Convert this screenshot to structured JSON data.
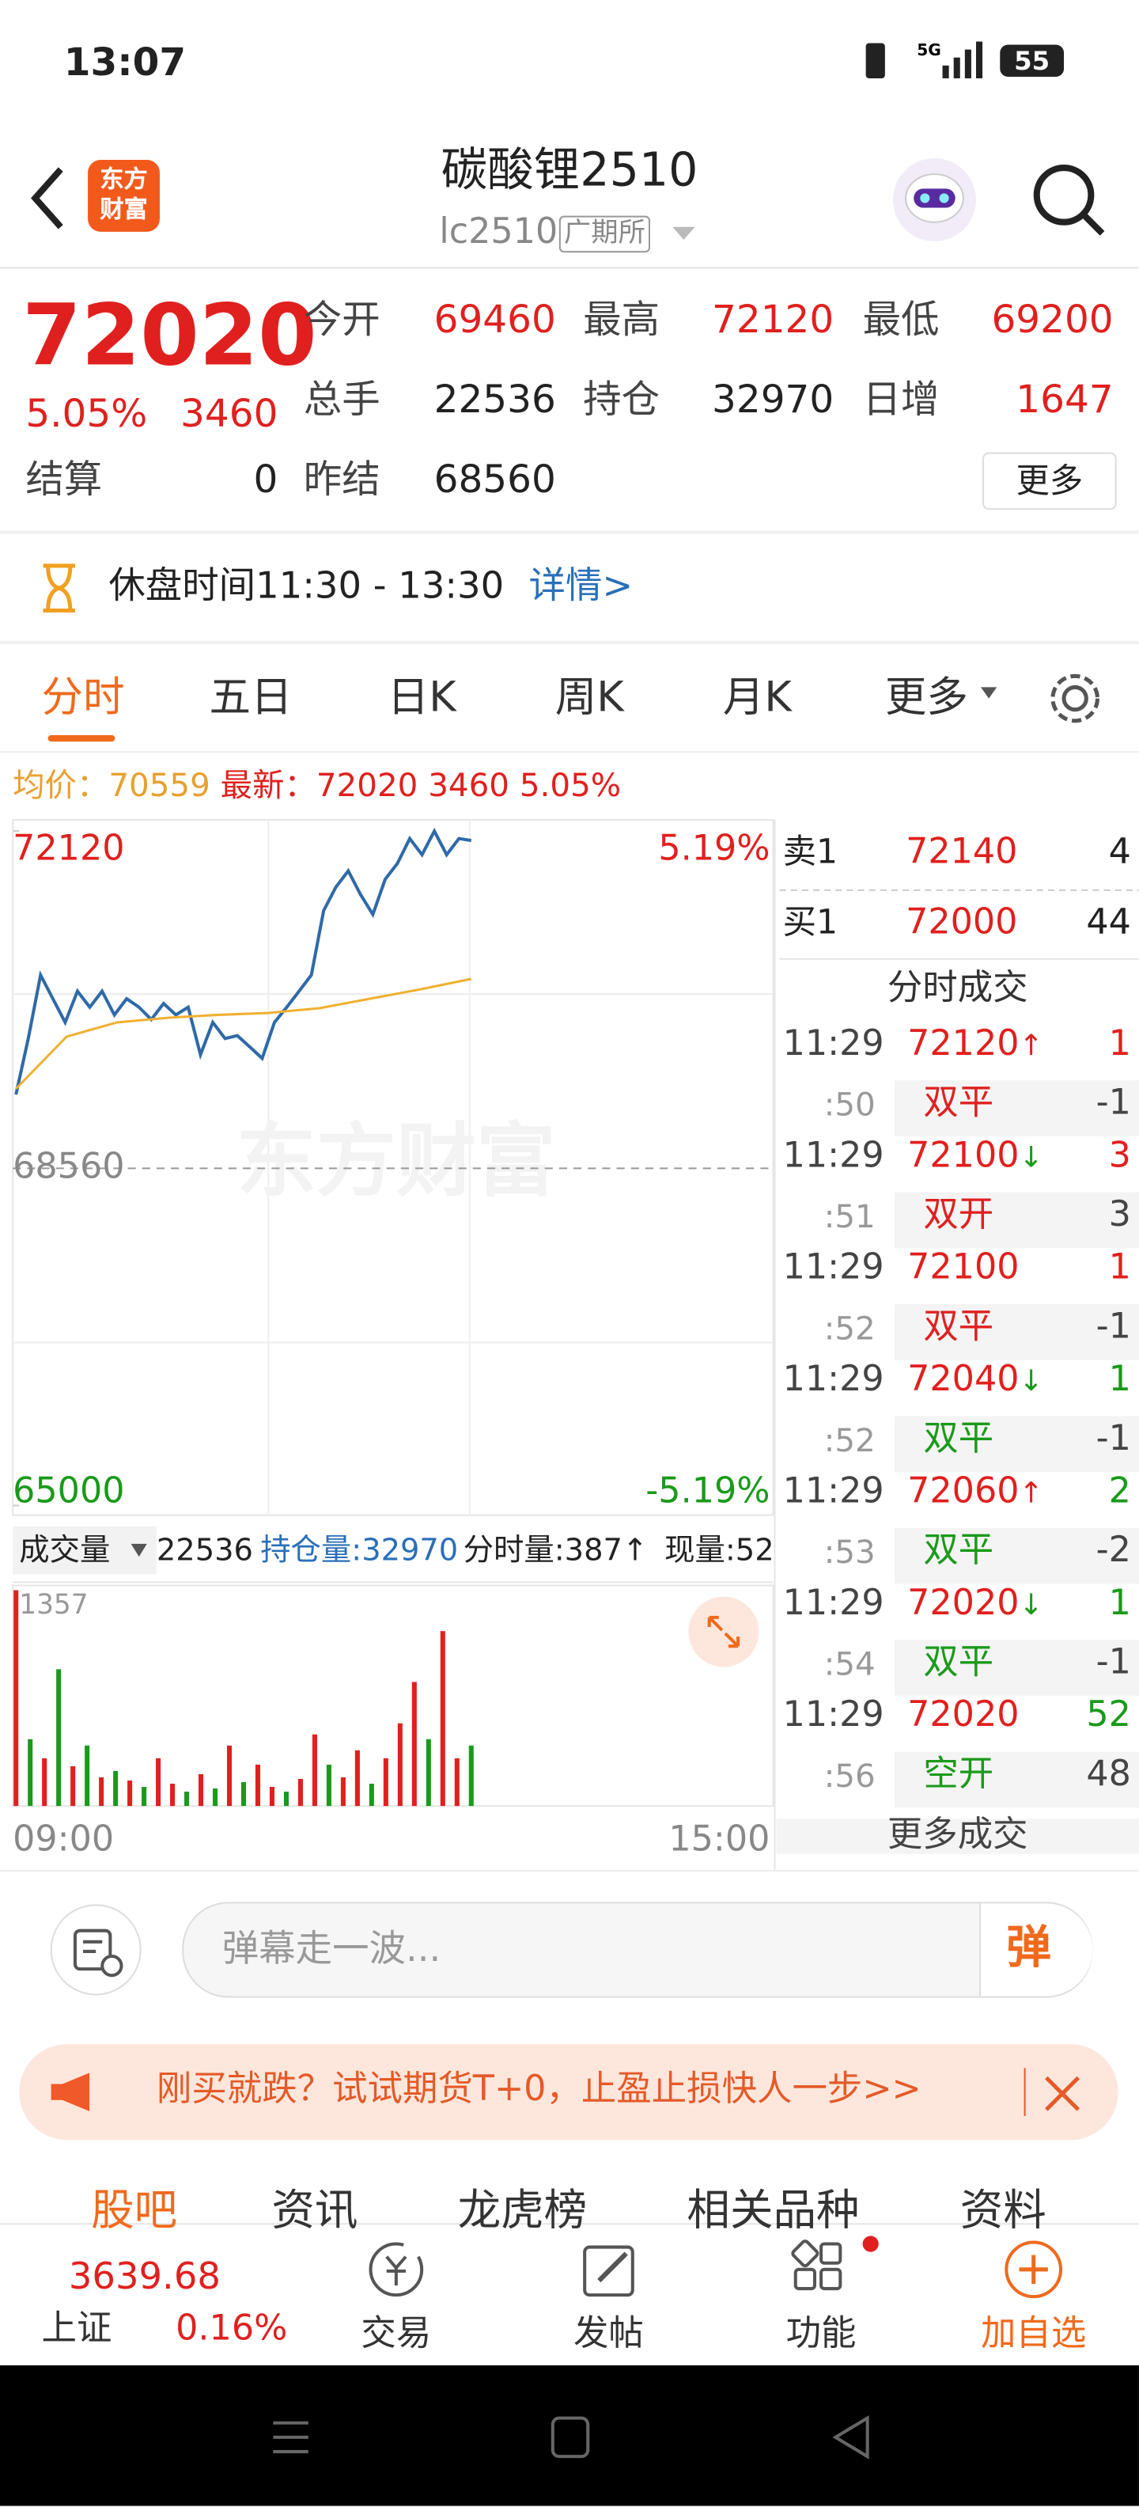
{
  "status": {
    "time": "13:07",
    "battery": "55"
  },
  "header": {
    "title": "碳酸锂2510",
    "code": "lc2510",
    "exchange": "广期所",
    "logo": [
      "东方",
      "财富"
    ]
  },
  "quote": {
    "price": "72020",
    "change_pct": "5.05%",
    "change": "3460",
    "fields": [
      {
        "label": "今开",
        "value": "69460"
      },
      {
        "label": "最高",
        "value": "72120"
      },
      {
        "label": "最低",
        "value": "69200"
      },
      {
        "label": "总手",
        "value": "22536"
      },
      {
        "label": "持仓",
        "value": "32970"
      },
      {
        "label": "日增",
        "value": "1647"
      }
    ],
    "settle_label": "结算",
    "settle": "0",
    "prev_label": "昨结",
    "prev": "68560",
    "more": "更多"
  },
  "notice": {
    "text": "休盘时间11:30 - 13:30",
    "link": "详情>"
  },
  "tabs": [
    "分时",
    "五日",
    "日K",
    "周K",
    "月K",
    "更多"
  ],
  "summary": {
    "avg_label": "均价：",
    "avg": "70559",
    "latest_label": "最新：",
    "latest": "72020",
    "change": "3460",
    "pct": "5.05%"
  },
  "chart_data": [
    {
      "type": "line",
      "watermark": "东方财富",
      "ylim": [
        65000,
        72120
      ],
      "yticks": [
        {
          "value": 65000,
          "label": "65000"
        },
        {
          "value": 68560,
          "label": "68560"
        },
        {
          "value": 72120,
          "label": "72120"
        }
      ],
      "pct_labels": [
        "-5.19%",
        "5.19%"
      ],
      "x_labels": [
        "09:00",
        "15:00"
      ],
      "series": [
        {
          "color": "#2f6aa8",
          "values": [
            69340,
            69930,
            70600,
            70350,
            70100,
            70430,
            70260,
            70430,
            70180,
            70350,
            70260,
            70130,
            70300,
            70180,
            70260,
            69760,
            70100,
            69930,
            69960,
            69840,
            69720,
            70100,
            70260,
            70430,
            70600,
            71280,
            71530,
            71700,
            71450,
            71240,
            71610,
            71780,
            72040,
            71870,
            72120,
            71870,
            72040,
            72020
          ]
        },
        {
          "color": "#f0b030",
          "values": [
            69400,
            69950,
            70100,
            70150,
            70180,
            70200,
            70250,
            70350,
            70450,
            70559
          ]
        }
      ]
    },
    {
      "type": "bar",
      "ylim": [
        0,
        1357
      ],
      "yticks": [
        1357
      ],
      "header": {
        "label": "成交量",
        "volume": "22536",
        "oi": "持仓量:32970",
        "tick_vol": "分时量:387↑",
        "now_vol": "现量:52"
      },
      "values": [
        1357,
        420,
        300,
        860,
        250,
        380,
        180,
        220,
        160,
        120,
        300,
        140,
        90,
        200,
        110,
        380,
        150,
        260,
        120,
        90,
        170,
        450,
        260,
        180,
        350,
        140,
        300,
        520,
        780,
        420,
        1100,
        300,
        380
      ],
      "colors": [
        "#e0201e",
        "#1a9a1a",
        "#e0201e",
        "#1a9a1a",
        "#e0201e",
        "#1a9a1a",
        "#e0201e",
        "#1a9a1a",
        "#e0201e",
        "#1a9a1a",
        "#e0201e",
        "#e0201e",
        "#1a9a1a",
        "#e0201e",
        "#1a9a1a",
        "#e0201e",
        "#1a9a1a",
        "#e0201e",
        "#e0201e",
        "#1a9a1a",
        "#e0201e",
        "#e0201e",
        "#1a9a1a",
        "#e0201e",
        "#e0201e",
        "#1a9a1a",
        "#e0201e",
        "#e0201e",
        "#e0201e",
        "#1a9a1a",
        "#e0201e",
        "#e0201e",
        "#1a9a1a"
      ]
    }
  ],
  "book": {
    "sell_label": "卖1",
    "sell_price": "72140",
    "sell_qty": "4",
    "buy_label": "买1",
    "buy_price": "72000",
    "buy_qty": "44",
    "title": "分时成交",
    "more": "更多成交",
    "trades": [
      {
        "time": "11:29",
        "price": "72120",
        "dir": "↑",
        "qty": "1",
        "qty_color": "#e0201e",
        "sub_time": ":50",
        "action": "双平",
        "action_color": "#e0201e",
        "sub_qty": "-1"
      },
      {
        "time": "11:29",
        "price": "72100",
        "dir": "↓",
        "qty": "3",
        "qty_color": "#e0201e",
        "sub_time": ":51",
        "action": "双开",
        "action_color": "#e0201e",
        "sub_qty": "3"
      },
      {
        "time": "11:29",
        "price": "72100",
        "qty": "1",
        "qty_color": "#e0201e",
        "sub_time": ":52",
        "action": "双平",
        "action_color": "#e0201e",
        "sub_qty": "-1"
      },
      {
        "time": "11:29",
        "price": "72040",
        "dir": "↓",
        "qty": "1",
        "qty_color": "#1a9a1a",
        "sub_time": ":52",
        "action": "双平",
        "action_color": "#1a9a1a",
        "sub_qty": "-1"
      },
      {
        "time": "11:29",
        "price": "72060",
        "dir": "↑",
        "qty": "2",
        "qty_color": "#1a9a1a",
        "sub_time": ":53",
        "action": "双平",
        "action_color": "#1a9a1a",
        "sub_qty": "-2"
      },
      {
        "time": "11:29",
        "price": "72020",
        "dir": "↓",
        "qty": "1",
        "qty_color": "#1a9a1a",
        "sub_time": ":54",
        "action": "双平",
        "action_color": "#1a9a1a",
        "sub_qty": "-1"
      },
      {
        "time": "11:29",
        "price": "72020",
        "qty": "52",
        "qty_color": "#1a9a1a",
        "sub_time": ":56",
        "action": "空开",
        "action_color": "#1a9a1a",
        "sub_qty": "48"
      }
    ]
  },
  "comment": {
    "placeholder": "弹幕走一波...",
    "button": "弹"
  },
  "ad": {
    "text": "刚买就跌？试试期货T+0，止盈止损快人一步>>"
  },
  "section_tabs": [
    "股吧",
    "资讯",
    "龙虎榜",
    "相关品种",
    "资料"
  ],
  "nav": {
    "index_value": "3639.68",
    "index_name": "上证",
    "index_pct": "0.16%",
    "items": [
      "交易",
      "发帖",
      "功能",
      "加自选"
    ]
  }
}
